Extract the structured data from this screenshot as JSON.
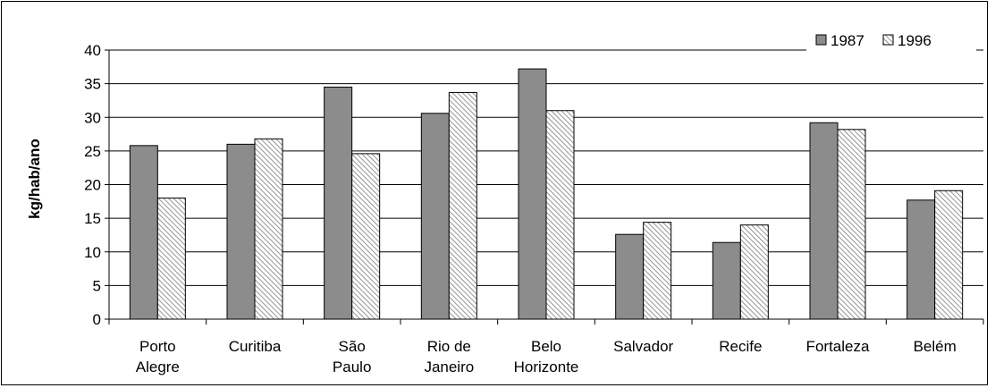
{
  "chart_data": {
    "type": "bar",
    "title": "",
    "xlabel": "",
    "ylabel": "kg/hab/ano",
    "ylim": [
      0,
      40
    ],
    "yticks": [
      0,
      5,
      10,
      15,
      20,
      25,
      30,
      35,
      40
    ],
    "grid": true,
    "legend_position": "top-right",
    "categories": [
      [
        "Porto",
        "Alegre"
      ],
      [
        "Curitiba"
      ],
      [
        "São",
        "Paulo"
      ],
      [
        "Rio de",
        "Janeiro"
      ],
      [
        "Belo",
        "Horizonte"
      ],
      [
        "Salvador"
      ],
      [
        "Recife"
      ],
      [
        "Fortaleza"
      ],
      [
        "Belém"
      ]
    ],
    "series": [
      {
        "name": "1987",
        "values": [
          25.8,
          26.0,
          34.5,
          30.6,
          37.2,
          12.6,
          11.4,
          29.2,
          17.7
        ],
        "color": "#8c8c8c",
        "pattern": "solid"
      },
      {
        "name": "1996",
        "values": [
          18.0,
          26.8,
          24.6,
          33.7,
          31.0,
          14.4,
          14.0,
          28.2,
          19.1
        ],
        "color": "#ffffff",
        "pattern": "diagonal-hatch"
      }
    ]
  }
}
